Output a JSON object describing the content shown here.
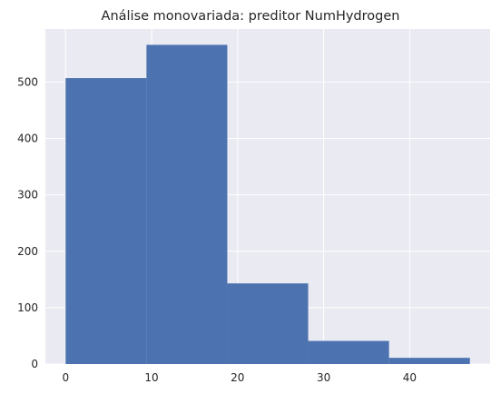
{
  "chart_data": {
    "type": "bar",
    "title": "Análise monovariada: preditor NumHydrogen",
    "xlabel": "",
    "ylabel": "",
    "bin_edges": [
      0,
      9.4,
      18.8,
      28.2,
      37.6,
      47
    ],
    "values": [
      507,
      566,
      143,
      41,
      11
    ],
    "xlim": [
      -2.35,
      49.35
    ],
    "ylim": [
      0,
      594
    ],
    "x_ticks": [
      0,
      10,
      20,
      30,
      40
    ],
    "y_ticks": [
      0,
      100,
      200,
      300,
      400,
      500
    ],
    "grid": true,
    "colors": {
      "bar": "#4c72b0",
      "background": "#eaeaf2",
      "grid": "#ffffff",
      "text": "#262626"
    }
  }
}
